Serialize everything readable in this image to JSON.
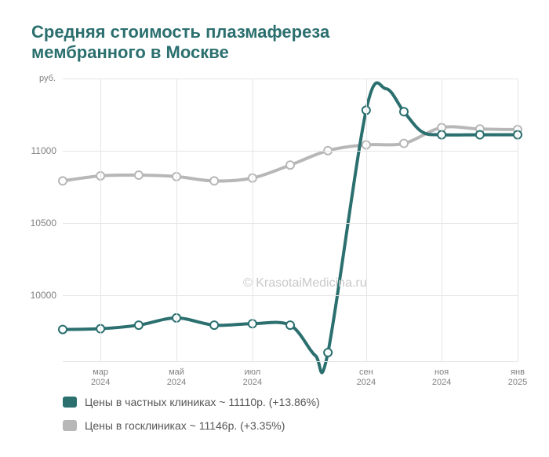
{
  "chart": {
    "title": "Средняя стоимость плазмафереза мембранного в Москве",
    "y_axis_label": "руб.",
    "watermark": "© KrasotaiMedicina.ru",
    "background_color": "#ffffff",
    "grid_color": "#e5e5e5",
    "title_color": "#2b6f6f",
    "tick_label_color": "#808080",
    "legend_text_color": "#565656",
    "title_fontsize": 22,
    "tick_fontsize": 12,
    "legend_fontsize": 14,
    "ylim": [
      9540,
      11500
    ],
    "yticks": [
      10000,
      10500,
      11000
    ],
    "x_categories": [
      "мар\n2024",
      "май\n2024",
      "июл\n2024",
      "сен\n2024",
      "ноя\n2024",
      "янв\n2025"
    ],
    "series": [
      {
        "id": "private",
        "legend_label": "Цены в частных клиниках ~ 11110р. (+13.86%)",
        "color": "#2b6f6f",
        "marker_fill": "#ffffff",
        "marker_stroke": "#2b6f6f",
        "line_width": 4,
        "marker_radius": 5,
        "points": [
          {
            "x": 0.0,
            "y": 9760
          },
          {
            "x": 0.083,
            "y": 9765
          },
          {
            "x": 0.167,
            "y": 9790
          },
          {
            "x": 0.25,
            "y": 9840
          },
          {
            "x": 0.333,
            "y": 9790
          },
          {
            "x": 0.417,
            "y": 9800
          },
          {
            "x": 0.5,
            "y": 9790
          },
          {
            "x": 0.555,
            "y": 9580
          },
          {
            "x": 0.583,
            "y": 9600
          },
          {
            "x": 0.667,
            "y": 11280
          },
          {
            "x": 0.71,
            "y": 11430
          },
          {
            "x": 0.75,
            "y": 11270
          },
          {
            "x": 0.79,
            "y": 11130
          },
          {
            "x": 0.833,
            "y": 11110
          },
          {
            "x": 0.917,
            "y": 11110
          },
          {
            "x": 1.0,
            "y": 11110
          }
        ],
        "markers_at": [
          0,
          1,
          2,
          3,
          4,
          5,
          6,
          8,
          9,
          11,
          13,
          14,
          15
        ]
      },
      {
        "id": "public",
        "legend_label": "Цены в госклиниках ~ 11146р. (+3.35%)",
        "color": "#b7b7b7",
        "marker_fill": "#ffffff",
        "marker_stroke": "#b7b7b7",
        "line_width": 4,
        "marker_radius": 5,
        "points": [
          {
            "x": 0.0,
            "y": 10790
          },
          {
            "x": 0.083,
            "y": 10825
          },
          {
            "x": 0.167,
            "y": 10830
          },
          {
            "x": 0.25,
            "y": 10820
          },
          {
            "x": 0.333,
            "y": 10790
          },
          {
            "x": 0.417,
            "y": 10810
          },
          {
            "x": 0.5,
            "y": 10900
          },
          {
            "x": 0.583,
            "y": 11000
          },
          {
            "x": 0.667,
            "y": 11040
          },
          {
            "x": 0.75,
            "y": 11050
          },
          {
            "x": 0.833,
            "y": 11160
          },
          {
            "x": 0.917,
            "y": 11150
          },
          {
            "x": 1.0,
            "y": 11146
          }
        ],
        "markers_at": [
          0,
          1,
          2,
          3,
          4,
          5,
          6,
          7,
          8,
          9,
          10,
          11,
          12
        ]
      }
    ]
  }
}
